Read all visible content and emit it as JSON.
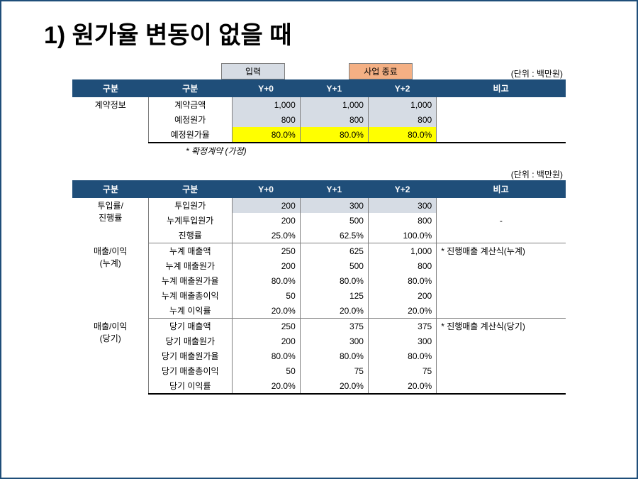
{
  "title": "1) 원가율 변동이 없을 때",
  "unit_label": "(단위 : 백만원)",
  "input_label": "입력",
  "end_label": "사업 종료",
  "footnote": "* 확정계약 (가정)",
  "headers": {
    "cat1": "구분",
    "cat2": "구분",
    "y0": "Y+0",
    "y1": "Y+1",
    "y2": "Y+2",
    "note": "비고"
  },
  "table1": {
    "category": "계약정보",
    "rows": [
      {
        "label": "계약금액",
        "y0": "1,000",
        "y1": "1,000",
        "y2": "1,000",
        "note": "",
        "hl": "lightblue"
      },
      {
        "label": "예정원가",
        "y0": "800",
        "y1": "800",
        "y2": "800",
        "note": "",
        "hl": "lightblue"
      },
      {
        "label": "예정원가율",
        "y0": "80.0%",
        "y1": "80.0%",
        "y2": "80.0%",
        "note": "",
        "hl": "yellow"
      }
    ]
  },
  "table2": {
    "sections": [
      {
        "category": [
          "투입률/",
          "진행률"
        ],
        "rows": [
          {
            "label": "투입원가",
            "y0": "200",
            "y1": "300",
            "y2": "300",
            "note": "",
            "hl": "lightblue"
          },
          {
            "label": "누계투입원가",
            "y0": "200",
            "y1": "500",
            "y2": "800",
            "note": "-"
          },
          {
            "label": "진행률",
            "y0": "25.0%",
            "y1": "62.5%",
            "y2": "100.0%",
            "note": ""
          }
        ]
      },
      {
        "category": [
          "매출/이익",
          "(누계)"
        ],
        "rows": [
          {
            "label": "누계 매출액",
            "y0": "250",
            "y1": "625",
            "y2": "1,000",
            "note": "* 진행매출 계산식(누계)"
          },
          {
            "label": "누계 매출원가",
            "y0": "200",
            "y1": "500",
            "y2": "800",
            "note": ""
          },
          {
            "label": "누계 매출원가율",
            "y0": "80.0%",
            "y1": "80.0%",
            "y2": "80.0%",
            "note": ""
          },
          {
            "label": "누계 매출총이익",
            "y0": "50",
            "y1": "125",
            "y2": "200",
            "note": ""
          },
          {
            "label": "누계 이익률",
            "y0": "20.0%",
            "y1": "20.0%",
            "y2": "20.0%",
            "note": ""
          }
        ]
      },
      {
        "category": [
          "매출/이익",
          "(당기)"
        ],
        "rows": [
          {
            "label": "당기 매출액",
            "y0": "250",
            "y1": "375",
            "y2": "375",
            "note": "* 진행매출 계산식(당기)"
          },
          {
            "label": "당기 매출원가",
            "y0": "200",
            "y1": "300",
            "y2": "300",
            "note": ""
          },
          {
            "label": "당기 매출원가율",
            "y0": "80.0%",
            "y1": "80.0%",
            "y2": "80.0%",
            "note": ""
          },
          {
            "label": "당기 매출총이익",
            "y0": "50",
            "y1": "75",
            "y2": "75",
            "note": ""
          },
          {
            "label": "당기 이익률",
            "y0": "20.0%",
            "y1": "20.0%",
            "y2": "20.0%",
            "note": ""
          }
        ]
      }
    ]
  },
  "colors": {
    "header_bg": "#1f4e79",
    "header_fg": "#ffffff",
    "lightblue": "#d6dce4",
    "yellow": "#ffff00",
    "peach": "#f4b084",
    "border": "#7f7f7f"
  }
}
